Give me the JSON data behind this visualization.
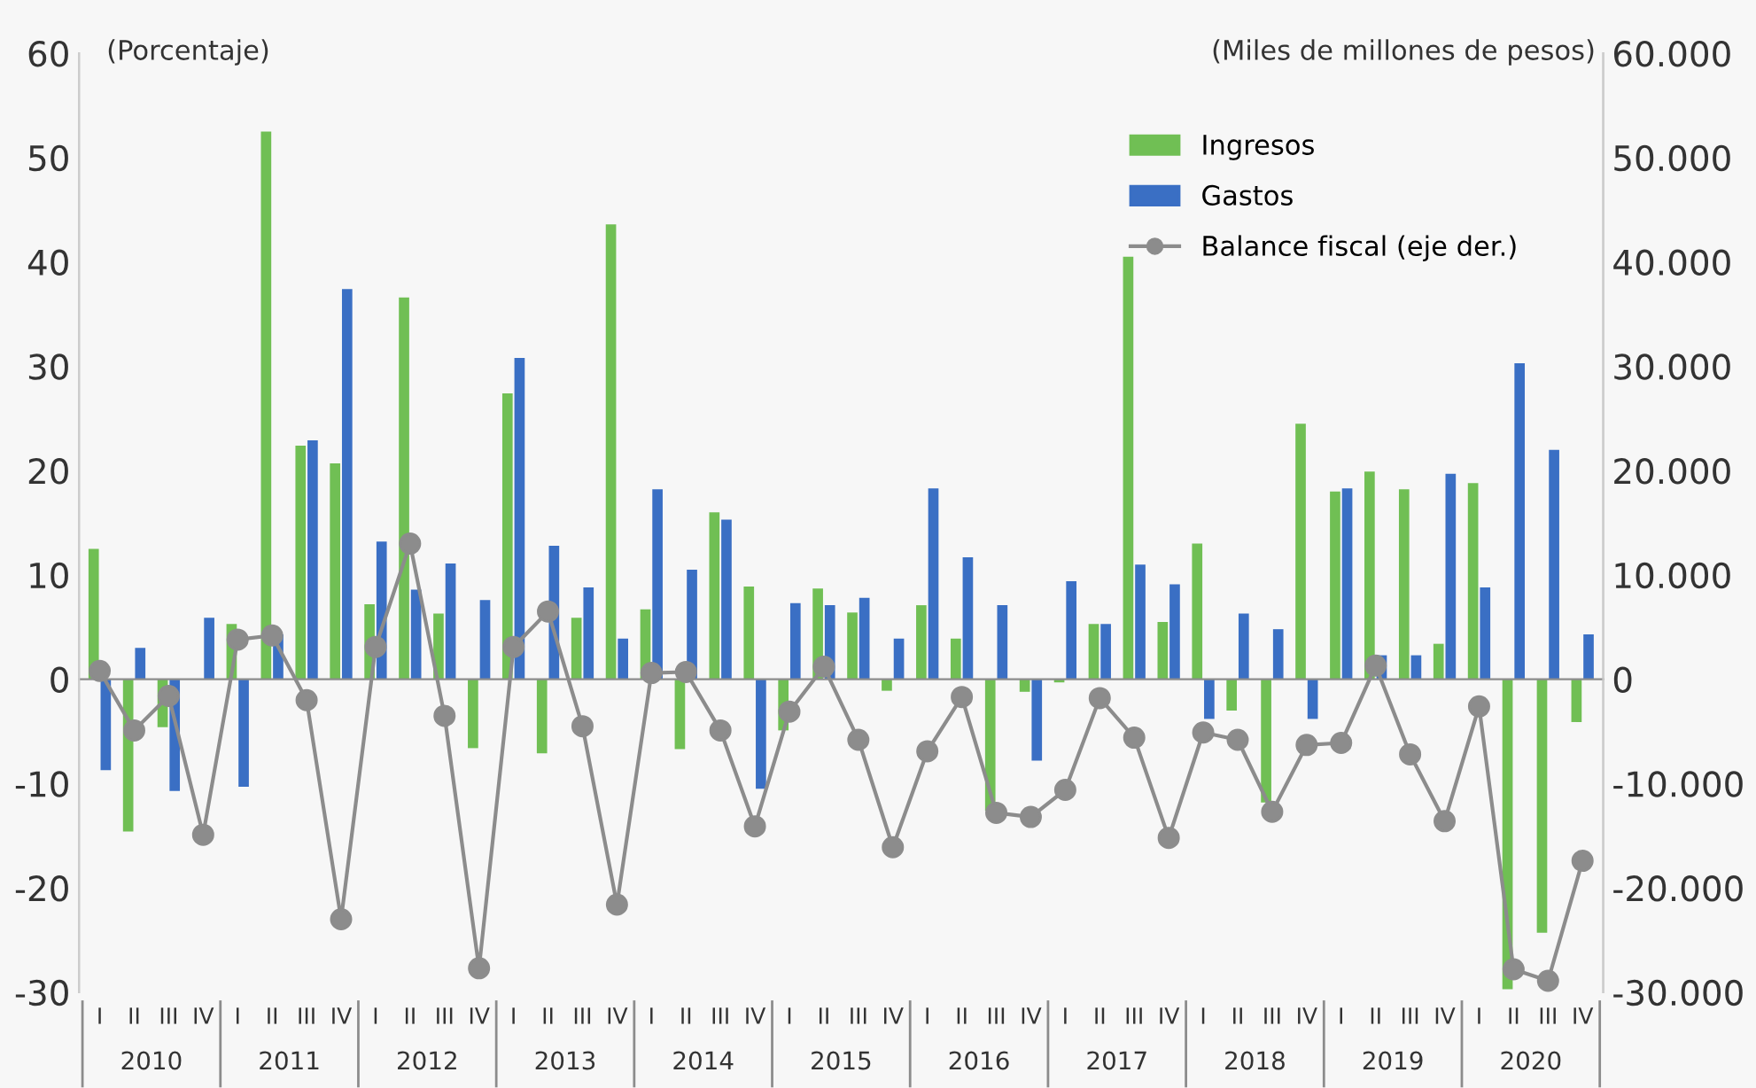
{
  "chart_data": {
    "type": "bar",
    "ylabel": "(Porcentaje)",
    "y2label": "(Miles de millones de pesos)",
    "categories": [
      "I",
      "II",
      "III",
      "IV",
      "I",
      "II",
      "III",
      "IV",
      "I",
      "II",
      "III",
      "IV",
      "I",
      "II",
      "III",
      "IV",
      "I",
      "II",
      "III",
      "IV",
      "I",
      "II",
      "III",
      "IV",
      "I",
      "II",
      "III",
      "IV",
      "I",
      "II",
      "III",
      "IV",
      "I",
      "II",
      "III",
      "IV",
      "I",
      "II",
      "III",
      "IV",
      "I",
      "II",
      "III",
      "IV"
    ],
    "annotations": [
      "2010",
      "2011",
      "2012",
      "2013",
      "2014",
      "2015",
      "2016",
      "2017",
      "2018",
      "2019",
      "2020"
    ],
    "series": [
      {
        "name": "Ingresos",
        "color": "#70bf54",
        "values": [
          12.5,
          -14.6,
          -4.6,
          0,
          5.3,
          52.5,
          22.4,
          20.7,
          7.2,
          36.6,
          6.3,
          -6.6,
          27.4,
          -7.1,
          5.9,
          43.6,
          6.7,
          -6.7,
          16.0,
          8.9,
          -4.9,
          8.7,
          6.4,
          -1.1,
          7.1,
          3.9,
          -12.6,
          -1.2,
          -0.3,
          5.3,
          40.5,
          5.5,
          13.0,
          -3.0,
          -11.8,
          24.5,
          18.0,
          19.9,
          18.2,
          3.4,
          18.8,
          -29.7,
          -24.3,
          -4.1
        ]
      },
      {
        "name": "Gastos",
        "color": "#3a6fc4",
        "values": [
          -8.7,
          3.0,
          -10.7,
          5.9,
          -10.3,
          4.3,
          22.9,
          37.4,
          13.2,
          8.6,
          11.1,
          7.6,
          30.8,
          12.8,
          8.8,
          3.9,
          18.2,
          10.5,
          15.3,
          -10.5,
          7.3,
          7.1,
          7.8,
          3.9,
          18.3,
          11.7,
          7.1,
          -7.8,
          9.4,
          5.3,
          11.0,
          9.1,
          -3.8,
          6.3,
          4.8,
          -3.8,
          18.3,
          2.3,
          2.3,
          19.7,
          8.8,
          30.3,
          22.0,
          4.3
        ]
      },
      {
        "name": "Balance fiscal (eje der.)",
        "type": "line",
        "axis": "y2",
        "color": "#8c8c8c",
        "values": [
          800,
          -4900,
          -1600,
          -14900,
          3800,
          4200,
          -2000,
          -23000,
          3100,
          13000,
          -3500,
          -27700,
          3100,
          6500,
          -4500,
          -21600,
          600,
          700,
          -4900,
          -14100,
          -3100,
          1200,
          -5800,
          -16100,
          -6900,
          -1700,
          -12800,
          -13200,
          -10600,
          -1800,
          -5600,
          -15200,
          -5100,
          -5800,
          -12700,
          -6300,
          -6100,
          1300,
          -7200,
          -13600,
          -2600,
          -27800,
          -28900,
          -17400
        ]
      }
    ],
    "ylim": [
      -30,
      60
    ],
    "yticks": [
      -30,
      -20,
      -10,
      0,
      10,
      20,
      30,
      40,
      50,
      60
    ],
    "y2lim": [
      -30000,
      60000
    ],
    "y2ticks": [
      {
        "value": -30000,
        "label": "-30.000"
      },
      {
        "value": -20000,
        "label": "-20.000"
      },
      {
        "value": -10000,
        "label": "-10.000"
      },
      0,
      {
        "value": 10000,
        "label": "10.000"
      },
      {
        "value": 20000,
        "label": "20.000"
      },
      {
        "value": 30000,
        "label": "30.000"
      },
      {
        "value": 40000,
        "label": "40.000"
      },
      {
        "value": 50000,
        "label": "50.000"
      },
      {
        "value": 60000,
        "label": "60.000"
      }
    ],
    "marker": "circle",
    "line_style": "solid",
    "legend": "top right"
  }
}
